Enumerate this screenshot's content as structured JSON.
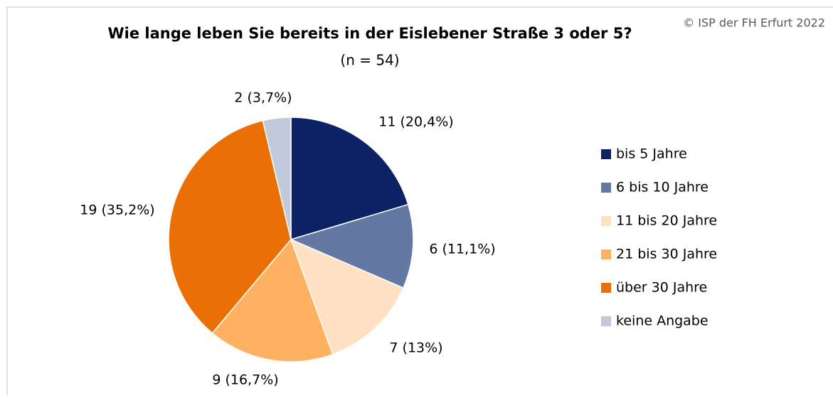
{
  "chart_data": {
    "type": "pie",
    "title": "Wie lange leben Sie bereits in der Eislebener Straße 3 oder 5?",
    "subtitle": "(n = 54)",
    "annotation": "© ISP der FH Erfurt 2022",
    "categories": [
      "bis 5 Jahre",
      "6 bis 10 Jahre",
      "11 bis 20 Jahre",
      "21 bis 30 Jahre",
      "über 30 Jahre",
      "keine Angabe"
    ],
    "values": [
      11,
      6,
      7,
      9,
      19,
      2
    ],
    "value_labels": [
      "11 (20,4%)",
      "6 (11,1%)",
      "7 (13%)",
      "9 (16,7%)",
      "19 (35,2%)",
      "2 (3,7%)"
    ],
    "colors": [
      "#0c2262",
      "#6478a4",
      "#fde1c2",
      "#fdb161",
      "#ea6f05",
      "#c1cadb"
    ],
    "legend": "right"
  }
}
